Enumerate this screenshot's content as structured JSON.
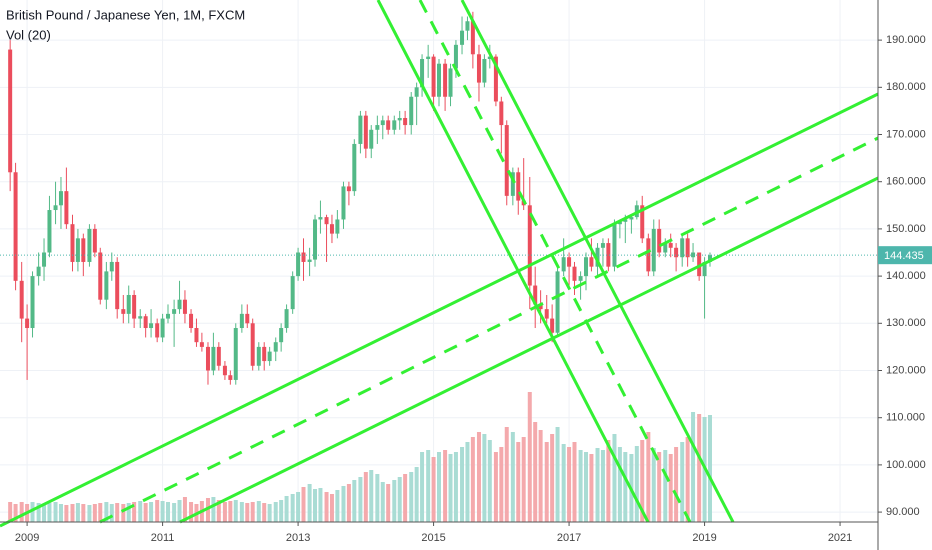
{
  "chart_data": {
    "type": "candlestick",
    "title": "British Pound / Japanese Yen, 1M, FXCM",
    "subtitle": "Vol (20)",
    "x": [
      2008.75,
      2008.83,
      2008.92,
      2009,
      2009.08,
      2009.17,
      2009.25,
      2009.33,
      2009.42,
      2009.5,
      2009.58,
      2009.67,
      2009.75,
      2009.83,
      2009.92,
      2010,
      2010.08,
      2010.17,
      2010.25,
      2010.33,
      2010.42,
      2010.5,
      2010.58,
      2010.67,
      2010.75,
      2010.83,
      2010.92,
      2011,
      2011.08,
      2011.17,
      2011.25,
      2011.33,
      2011.42,
      2011.5,
      2011.58,
      2011.67,
      2011.75,
      2011.83,
      2011.92,
      2012,
      2012.08,
      2012.17,
      2012.25,
      2012.33,
      2012.42,
      2012.5,
      2012.58,
      2012.67,
      2012.75,
      2012.83,
      2012.92,
      2013,
      2013.08,
      2013.17,
      2013.25,
      2013.33,
      2013.42,
      2013.5,
      2013.58,
      2013.67,
      2013.75,
      2013.83,
      2013.92,
      2014,
      2014.08,
      2014.17,
      2014.25,
      2014.33,
      2014.42,
      2014.5,
      2014.58,
      2014.67,
      2014.75,
      2014.83,
      2014.92,
      2015,
      2015.08,
      2015.17,
      2015.25,
      2015.33,
      2015.42,
      2015.5,
      2015.58,
      2015.67,
      2015.75,
      2015.83,
      2015.92,
      2016,
      2016.08,
      2016.17,
      2016.25,
      2016.33,
      2016.42,
      2016.5,
      2016.58,
      2016.67,
      2016.75,
      2016.83,
      2016.92,
      2017,
      2017.08,
      2017.17,
      2017.25,
      2017.33,
      2017.42,
      2017.5,
      2017.58,
      2017.67,
      2017.75,
      2017.83,
      2017.92,
      2018,
      2018.08,
      2018.17,
      2018.25,
      2018.33,
      2018.42,
      2018.5,
      2018.58,
      2018.67,
      2018.75,
      2018.83,
      2018.92,
      2019,
      2019.08
    ],
    "open": [
      188,
      162,
      139,
      131,
      129,
      140,
      142,
      145,
      154,
      155,
      158,
      151,
      143,
      148,
      143,
      150,
      145,
      135,
      141,
      143,
      133,
      132,
      136,
      131,
      131.5,
      129,
      130,
      127,
      131,
      132,
      133,
      135,
      132,
      129,
      126,
      125,
      120,
      125,
      121,
      119,
      118,
      129,
      132,
      130,
      121,
      125,
      122,
      124,
      126,
      129,
      133,
      140,
      145,
      143,
      143.5,
      152,
      152.5,
      151,
      149,
      152,
      159,
      158,
      168,
      174,
      167,
      171,
      172,
      173,
      171,
      173,
      173.5,
      172,
      178,
      180,
      186,
      186.5,
      178,
      185,
      178,
      184,
      189,
      192,
      194,
      187,
      181,
      186,
      186.5,
      177,
      172,
      157,
      162,
      156,
      155,
      138,
      134,
      133,
      131,
      128,
      141,
      144,
      142,
      139,
      140,
      144,
      142,
      146,
      147,
      142,
      151,
      151.5,
      152,
      152.5,
      155,
      148,
      141,
      150,
      145,
      147,
      146,
      144,
      148,
      144,
      145,
      140,
      143
    ],
    "high": [
      190,
      164,
      143,
      134,
      141,
      145,
      148,
      157,
      160,
      161,
      163,
      153,
      150,
      149,
      151,
      151,
      146,
      143,
      145,
      144,
      136,
      138,
      137,
      133,
      132,
      133,
      131,
      132,
      134,
      135,
      139,
      137,
      133,
      131,
      128,
      126,
      128,
      126,
      122,
      120,
      130,
      134,
      134,
      131,
      126,
      126,
      125,
      127,
      130,
      134,
      141,
      146,
      148,
      146,
      153,
      156,
      153,
      153,
      154,
      160,
      160,
      169,
      175,
      175,
      172,
      174,
      174,
      174,
      174,
      175,
      175,
      179,
      181,
      187,
      189,
      187,
      186,
      186,
      185,
      190,
      195,
      195,
      196,
      189,
      187,
      189,
      187,
      178,
      173,
      163,
      163,
      165,
      161,
      142,
      137,
      136,
      134,
      142,
      148,
      145,
      143,
      141,
      145,
      148,
      147,
      148,
      148,
      152,
      152,
      153,
      153,
      156,
      157,
      149,
      152,
      152,
      148,
      149,
      147,
      149,
      149,
      147,
      145,
      144,
      145
    ],
    "low": [
      158,
      137,
      126,
      118,
      127,
      138,
      139,
      144,
      151,
      150,
      150,
      141,
      141,
      140,
      142,
      144,
      134,
      133,
      139,
      131,
      130,
      130,
      129,
      129,
      127,
      127,
      126,
      126,
      130,
      125,
      132,
      130,
      128,
      125,
      124,
      117,
      119,
      120,
      118,
      117,
      117,
      128,
      129,
      120,
      120,
      120,
      121,
      122,
      124,
      128,
      132,
      139,
      139,
      140,
      142,
      149,
      143,
      147,
      148,
      150,
      155,
      157,
      166,
      165,
      165,
      168,
      169,
      170,
      170,
      171,
      170,
      170,
      172,
      178,
      182,
      175,
      176,
      175,
      176,
      182,
      187,
      190,
      184,
      177,
      180,
      184,
      176,
      166,
      155,
      155,
      153,
      154,
      133,
      129,
      130,
      130,
      126,
      127,
      140,
      138,
      136,
      135,
      137,
      141,
      140,
      142,
      141,
      141,
      148,
      147,
      149,
      152,
      147,
      140,
      140,
      144,
      144,
      144,
      141,
      142,
      142,
      143,
      139,
      131,
      142
    ],
    "close": [
      162,
      139,
      131,
      129,
      140,
      142,
      145,
      154,
      155,
      158,
      151,
      143,
      148,
      143,
      150,
      145,
      135,
      141,
      143,
      133,
      132,
      136,
      131,
      131.5,
      129,
      130,
      127,
      131,
      132,
      133,
      135,
      132,
      129,
      126,
      125,
      120,
      125,
      121,
      119,
      118,
      129,
      132,
      130,
      121,
      125,
      122,
      124,
      126,
      129,
      133,
      140,
      145,
      143,
      143.5,
      152,
      152.5,
      151,
      149,
      152,
      159,
      158,
      168,
      174,
      167,
      171,
      172,
      173,
      171,
      173,
      173.5,
      172,
      178,
      180,
      186,
      186.5,
      178,
      185,
      178,
      184,
      189,
      192,
      194,
      187,
      181,
      186,
      186.5,
      177,
      172,
      157,
      162,
      156,
      155,
      138,
      134,
      133,
      131,
      128,
      141,
      144,
      142,
      139,
      140,
      144,
      142,
      146,
      147,
      142,
      151,
      151.5,
      152,
      152.5,
      155,
      148,
      141,
      150,
      145,
      147,
      146,
      144,
      148,
      144,
      145,
      140,
      143,
      144.435
    ],
    "volume": [
      20,
      18,
      20,
      18,
      20,
      19,
      18,
      19,
      20,
      18,
      17,
      18,
      19,
      18,
      17,
      18,
      19,
      20,
      18,
      19,
      18,
      19,
      20,
      21,
      19,
      20,
      22,
      21,
      20,
      19,
      22,
      25,
      20,
      18,
      21,
      24,
      25,
      22,
      20,
      21,
      22,
      20,
      19,
      20,
      21,
      19,
      18,
      20,
      22,
      26,
      28,
      30,
      35,
      38,
      33,
      34,
      30,
      28,
      32,
      36,
      38,
      42,
      45,
      50,
      52,
      48,
      40,
      38,
      42,
      45,
      48,
      50,
      55,
      70,
      72,
      65,
      70,
      72,
      68,
      70,
      75,
      80,
      85,
      90,
      88,
      82,
      70,
      75,
      95,
      90,
      80,
      85,
      130,
      100,
      92,
      80,
      88,
      95,
      78,
      75,
      80,
      72,
      70,
      68,
      74,
      72,
      82,
      88,
      75,
      70,
      68,
      76,
      82,
      90,
      74,
      70,
      72,
      68,
      75,
      80,
      85,
      110,
      108,
      105,
      107
    ],
    "up_color": "#53b987",
    "down_color": "#eb4d5c",
    "volume_up_color": "#a9dcd4",
    "volume_down_color": "#f4a9ac",
    "last_price_color": "#4db6ac",
    "xlim": [
      2008.6,
      2021.56
    ],
    "ylim": [
      87.9,
      198.5
    ],
    "xticks": [
      2009,
      2011,
      2013,
      2015,
      2017,
      2019,
      2021
    ],
    "yticks": [
      {
        "value": 90,
        "label": "90.000"
      },
      {
        "value": 100,
        "label": "100.000"
      },
      {
        "value": 110,
        "label": "110.000"
      },
      {
        "value": 120,
        "label": "120.000"
      },
      {
        "value": 130,
        "label": "130.000"
      },
      {
        "value": 140,
        "label": "140.000"
      },
      {
        "value": 150,
        "label": "150.000"
      },
      {
        "value": 160,
        "label": "160.000"
      },
      {
        "value": 170,
        "label": "170.000"
      },
      {
        "value": 180,
        "label": "180.000"
      },
      {
        "value": 190,
        "label": "190.000"
      }
    ],
    "grid": true
  }
}
